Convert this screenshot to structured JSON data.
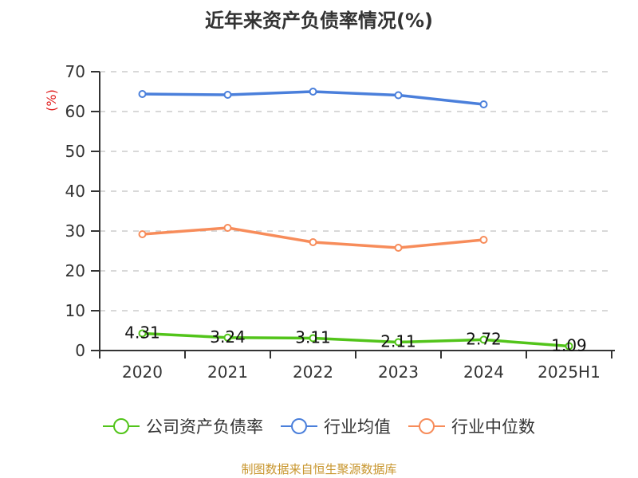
{
  "title": "近年来资产负债率情况(%)",
  "y_unit_label": "(%)",
  "source": "制图数据来自恒生聚源数据库",
  "colors": {
    "company": "#52c41a",
    "industry_avg": "#4a7fdb",
    "industry_median": "#f78c5a",
    "grid": "#cccccc",
    "axis": "#333333",
    "unit_label": "#e02020",
    "source": "#c8962e"
  },
  "legend": [
    {
      "label": "公司资产负债率",
      "color": "#52c41a"
    },
    {
      "label": "行业均值",
      "color": "#4a7fdb"
    },
    {
      "label": "行业中位数",
      "color": "#f78c5a"
    }
  ],
  "chart_data": {
    "type": "line",
    "title": "近年来资产负债率情况(%)",
    "xlabel": "",
    "ylabel": "(%)",
    "ylim": [
      0,
      70
    ],
    "yticks": [
      0,
      10,
      20,
      30,
      40,
      50,
      60,
      70
    ],
    "grid": "horizontal dashed",
    "legend_position": "bottom",
    "categories": [
      "2020",
      "2021",
      "2022",
      "2023",
      "2024",
      "2025H1"
    ],
    "series": [
      {
        "name": "公司资产负债率",
        "values": [
          4.31,
          3.24,
          3.11,
          2.11,
          2.72,
          1.09
        ],
        "data_labels": [
          "4.31",
          "3.24",
          "3.11",
          "2.11",
          "2.72",
          "1.09"
        ]
      },
      {
        "name": "行业均值",
        "values": [
          64.4,
          64.2,
          65.0,
          64.1,
          61.8,
          null
        ]
      },
      {
        "name": "行业中位数",
        "values": [
          29.2,
          30.8,
          27.2,
          25.8,
          27.8,
          null
        ]
      }
    ]
  }
}
